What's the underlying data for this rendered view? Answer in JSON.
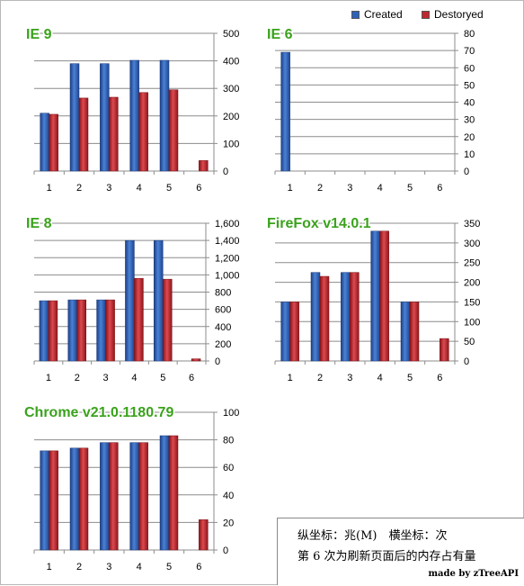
{
  "legend": {
    "created_label": "Created",
    "destroyed_label": "Destoryed",
    "created_color": "#2e62b8",
    "destroyed_color": "#c0282f"
  },
  "note": {
    "line1": "纵坐标：兆(M)　横坐标：次",
    "line2": "第 6 次为刷新页面后的内存占有量",
    "signature": "made by zTreeAPI"
  },
  "chart_data": [
    {
      "type": "bar",
      "title": "IE 9",
      "categories": [
        "1",
        "2",
        "3",
        "4",
        "5",
        "6"
      ],
      "ylim": [
        0,
        500
      ],
      "yticks": [
        "0",
        "100",
        "200",
        "300",
        "400",
        "500"
      ],
      "series": [
        {
          "name": "Created",
          "values": [
            210,
            390,
            390,
            402,
            402,
            0
          ]
        },
        {
          "name": "Destoryed",
          "values": [
            206,
            265,
            268,
            285,
            295,
            38
          ]
        }
      ]
    },
    {
      "type": "bar",
      "title": "IE 6",
      "categories": [
        "1",
        "2",
        "3",
        "4",
        "5",
        "6"
      ],
      "ylim": [
        0,
        80
      ],
      "yticks": [
        "0",
        "10",
        "20",
        "30",
        "40",
        "50",
        "60",
        "70",
        "80"
      ],
      "series": [
        {
          "name": "Created",
          "values": [
            69,
            0,
            0,
            0,
            0,
            0
          ]
        },
        {
          "name": "Destoryed",
          "values": [
            0,
            0,
            0,
            0,
            0,
            0
          ]
        }
      ]
    },
    {
      "type": "bar",
      "title": "IE 8",
      "categories": [
        "1",
        "2",
        "3",
        "4",
        "5",
        "6"
      ],
      "ylim": [
        0,
        1600
      ],
      "yticks": [
        "0",
        "200",
        "400",
        "600",
        "800",
        "1,000",
        "1,200",
        "1,400",
        "1,600"
      ],
      "series": [
        {
          "name": "Created",
          "values": [
            700,
            710,
            710,
            1400,
            1400,
            0
          ]
        },
        {
          "name": "Destoryed",
          "values": [
            700,
            710,
            710,
            960,
            950,
            25
          ]
        }
      ]
    },
    {
      "type": "bar",
      "title": "FireFox v14.0.1",
      "categories": [
        "1",
        "2",
        "3",
        "4",
        "5",
        "6"
      ],
      "ylim": [
        0,
        350
      ],
      "yticks": [
        "0",
        "50",
        "100",
        "150",
        "200",
        "250",
        "300",
        "350"
      ],
      "series": [
        {
          "name": "Created",
          "values": [
            150,
            225,
            225,
            330,
            150,
            0
          ]
        },
        {
          "name": "Destoryed",
          "values": [
            150,
            215,
            225,
            330,
            150,
            57
          ]
        }
      ]
    },
    {
      "type": "bar",
      "title": "Chrome v21.0.1180.79",
      "categories": [
        "1",
        "2",
        "3",
        "4",
        "5",
        "6"
      ],
      "ylim": [
        0,
        100
      ],
      "yticks": [
        "0",
        "20",
        "40",
        "60",
        "80",
        "100"
      ],
      "series": [
        {
          "name": "Created",
          "values": [
            72,
            74,
            78,
            78,
            83,
            0
          ]
        },
        {
          "name": "Destoryed",
          "values": [
            72,
            74,
            78,
            78,
            83,
            22
          ]
        }
      ]
    }
  ]
}
